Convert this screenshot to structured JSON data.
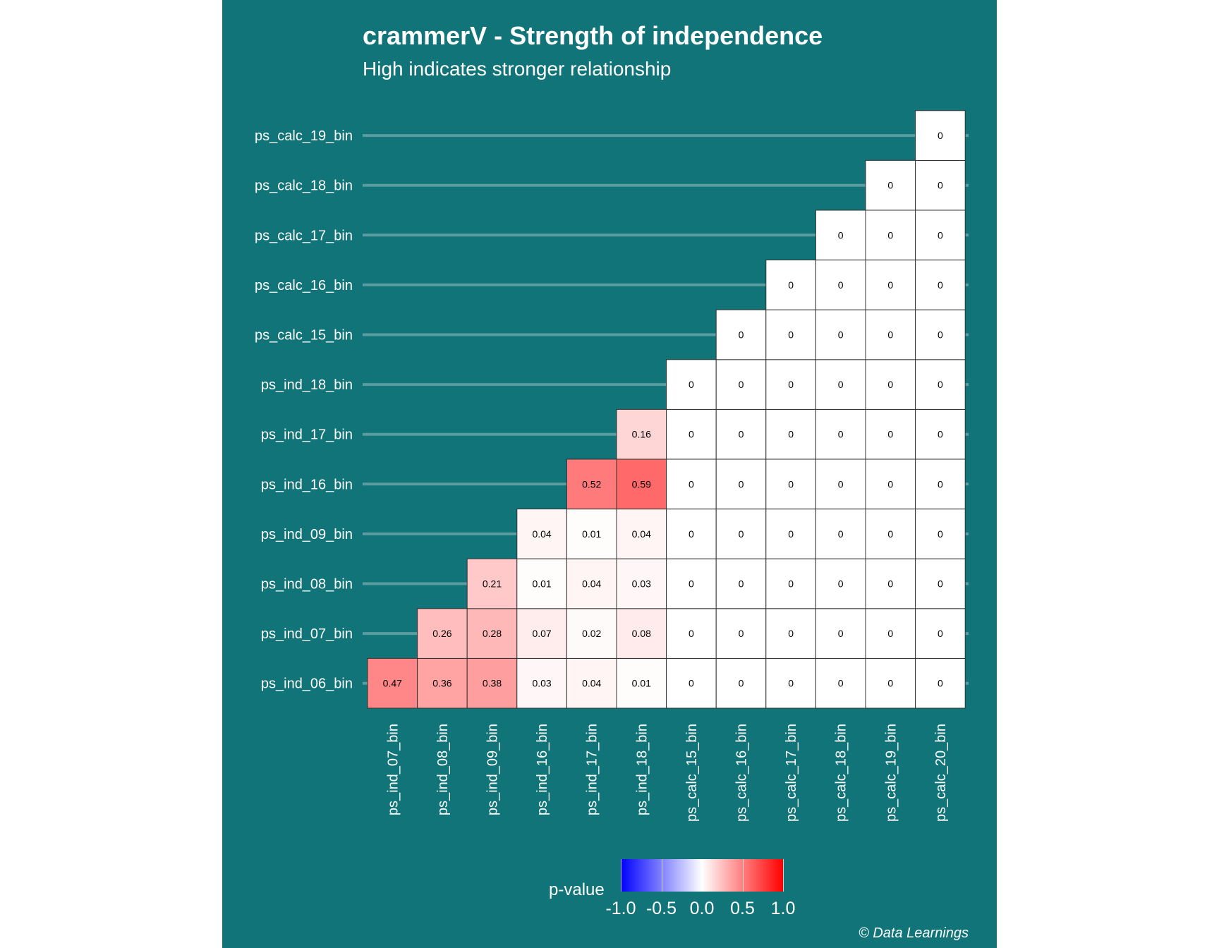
{
  "chart_data": {
    "type": "heatmap",
    "title": "crammerV - Strength of independence",
    "subtitle": "High indicates stronger relationship",
    "caption": "© Data Learnings",
    "x_labels": [
      "ps_ind_07_bin",
      "ps_ind_08_bin",
      "ps_ind_09_bin",
      "ps_ind_16_bin",
      "ps_ind_17_bin",
      "ps_ind_18_bin",
      "ps_calc_15_bin",
      "ps_calc_16_bin",
      "ps_calc_17_bin",
      "ps_calc_18_bin",
      "ps_calc_19_bin",
      "ps_calc_20_bin"
    ],
    "y_labels": [
      "ps_ind_06_bin",
      "ps_ind_07_bin",
      "ps_ind_08_bin",
      "ps_ind_09_bin",
      "ps_ind_16_bin",
      "ps_ind_17_bin",
      "ps_ind_18_bin",
      "ps_calc_15_bin",
      "ps_calc_16_bin",
      "ps_calc_17_bin",
      "ps_calc_18_bin",
      "ps_calc_19_bin"
    ],
    "cells": [
      {
        "x": "ps_ind_07_bin",
        "y": "ps_ind_06_bin",
        "value": 0.47,
        "label": "0.47"
      },
      {
        "x": "ps_ind_08_bin",
        "y": "ps_ind_06_bin",
        "value": 0.36,
        "label": "0.36"
      },
      {
        "x": "ps_ind_09_bin",
        "y": "ps_ind_06_bin",
        "value": 0.38,
        "label": "0.38"
      },
      {
        "x": "ps_ind_16_bin",
        "y": "ps_ind_06_bin",
        "value": 0.03,
        "label": "0.03"
      },
      {
        "x": "ps_ind_17_bin",
        "y": "ps_ind_06_bin",
        "value": 0.04,
        "label": "0.04"
      },
      {
        "x": "ps_ind_18_bin",
        "y": "ps_ind_06_bin",
        "value": 0.01,
        "label": "0.01"
      },
      {
        "x": "ps_calc_15_bin",
        "y": "ps_ind_06_bin",
        "value": 0,
        "label": "0"
      },
      {
        "x": "ps_calc_16_bin",
        "y": "ps_ind_06_bin",
        "value": 0,
        "label": "0"
      },
      {
        "x": "ps_calc_17_bin",
        "y": "ps_ind_06_bin",
        "value": 0,
        "label": "0"
      },
      {
        "x": "ps_calc_18_bin",
        "y": "ps_ind_06_bin",
        "value": 0,
        "label": "0"
      },
      {
        "x": "ps_calc_19_bin",
        "y": "ps_ind_06_bin",
        "value": 0,
        "label": "0"
      },
      {
        "x": "ps_calc_20_bin",
        "y": "ps_ind_06_bin",
        "value": 0,
        "label": "0"
      },
      {
        "x": "ps_ind_08_bin",
        "y": "ps_ind_07_bin",
        "value": 0.26,
        "label": "0.26"
      },
      {
        "x": "ps_ind_09_bin",
        "y": "ps_ind_07_bin",
        "value": 0.28,
        "label": "0.28"
      },
      {
        "x": "ps_ind_16_bin",
        "y": "ps_ind_07_bin",
        "value": 0.07,
        "label": "0.07"
      },
      {
        "x": "ps_ind_17_bin",
        "y": "ps_ind_07_bin",
        "value": 0.02,
        "label": "0.02"
      },
      {
        "x": "ps_ind_18_bin",
        "y": "ps_ind_07_bin",
        "value": 0.08,
        "label": "0.08"
      },
      {
        "x": "ps_calc_15_bin",
        "y": "ps_ind_07_bin",
        "value": 0,
        "label": "0"
      },
      {
        "x": "ps_calc_16_bin",
        "y": "ps_ind_07_bin",
        "value": 0,
        "label": "0"
      },
      {
        "x": "ps_calc_17_bin",
        "y": "ps_ind_07_bin",
        "value": 0,
        "label": "0"
      },
      {
        "x": "ps_calc_18_bin",
        "y": "ps_ind_07_bin",
        "value": 0,
        "label": "0"
      },
      {
        "x": "ps_calc_19_bin",
        "y": "ps_ind_07_bin",
        "value": 0,
        "label": "0"
      },
      {
        "x": "ps_calc_20_bin",
        "y": "ps_ind_07_bin",
        "value": 0,
        "label": "0"
      },
      {
        "x": "ps_ind_09_bin",
        "y": "ps_ind_08_bin",
        "value": 0.21,
        "label": "0.21"
      },
      {
        "x": "ps_ind_16_bin",
        "y": "ps_ind_08_bin",
        "value": 0.01,
        "label": "0.01"
      },
      {
        "x": "ps_ind_17_bin",
        "y": "ps_ind_08_bin",
        "value": 0.04,
        "label": "0.04"
      },
      {
        "x": "ps_ind_18_bin",
        "y": "ps_ind_08_bin",
        "value": 0.03,
        "label": "0.03"
      },
      {
        "x": "ps_calc_15_bin",
        "y": "ps_ind_08_bin",
        "value": 0,
        "label": "0"
      },
      {
        "x": "ps_calc_16_bin",
        "y": "ps_ind_08_bin",
        "value": 0,
        "label": "0"
      },
      {
        "x": "ps_calc_17_bin",
        "y": "ps_ind_08_bin",
        "value": 0,
        "label": "0"
      },
      {
        "x": "ps_calc_18_bin",
        "y": "ps_ind_08_bin",
        "value": 0,
        "label": "0"
      },
      {
        "x": "ps_calc_19_bin",
        "y": "ps_ind_08_bin",
        "value": 0,
        "label": "0"
      },
      {
        "x": "ps_calc_20_bin",
        "y": "ps_ind_08_bin",
        "value": 0,
        "label": "0"
      },
      {
        "x": "ps_ind_16_bin",
        "y": "ps_ind_09_bin",
        "value": 0.04,
        "label": "0.04"
      },
      {
        "x": "ps_ind_17_bin",
        "y": "ps_ind_09_bin",
        "value": 0.01,
        "label": "0.01"
      },
      {
        "x": "ps_ind_18_bin",
        "y": "ps_ind_09_bin",
        "value": 0.04,
        "label": "0.04"
      },
      {
        "x": "ps_calc_15_bin",
        "y": "ps_ind_09_bin",
        "value": 0,
        "label": "0"
      },
      {
        "x": "ps_calc_16_bin",
        "y": "ps_ind_09_bin",
        "value": 0,
        "label": "0"
      },
      {
        "x": "ps_calc_17_bin",
        "y": "ps_ind_09_bin",
        "value": 0,
        "label": "0"
      },
      {
        "x": "ps_calc_18_bin",
        "y": "ps_ind_09_bin",
        "value": 0,
        "label": "0"
      },
      {
        "x": "ps_calc_19_bin",
        "y": "ps_ind_09_bin",
        "value": 0,
        "label": "0"
      },
      {
        "x": "ps_calc_20_bin",
        "y": "ps_ind_09_bin",
        "value": 0,
        "label": "0"
      },
      {
        "x": "ps_ind_17_bin",
        "y": "ps_ind_16_bin",
        "value": 0.52,
        "label": "0.52"
      },
      {
        "x": "ps_ind_18_bin",
        "y": "ps_ind_16_bin",
        "value": 0.59,
        "label": "0.59"
      },
      {
        "x": "ps_calc_15_bin",
        "y": "ps_ind_16_bin",
        "value": 0,
        "label": "0"
      },
      {
        "x": "ps_calc_16_bin",
        "y": "ps_ind_16_bin",
        "value": 0,
        "label": "0"
      },
      {
        "x": "ps_calc_17_bin",
        "y": "ps_ind_16_bin",
        "value": 0,
        "label": "0"
      },
      {
        "x": "ps_calc_18_bin",
        "y": "ps_ind_16_bin",
        "value": 0,
        "label": "0"
      },
      {
        "x": "ps_calc_19_bin",
        "y": "ps_ind_16_bin",
        "value": 0,
        "label": "0"
      },
      {
        "x": "ps_calc_20_bin",
        "y": "ps_ind_16_bin",
        "value": 0,
        "label": "0"
      },
      {
        "x": "ps_ind_18_bin",
        "y": "ps_ind_17_bin",
        "value": 0.16,
        "label": "0.16"
      },
      {
        "x": "ps_calc_15_bin",
        "y": "ps_ind_17_bin",
        "value": 0,
        "label": "0"
      },
      {
        "x": "ps_calc_16_bin",
        "y": "ps_ind_17_bin",
        "value": 0,
        "label": "0"
      },
      {
        "x": "ps_calc_17_bin",
        "y": "ps_ind_17_bin",
        "value": 0,
        "label": "0"
      },
      {
        "x": "ps_calc_18_bin",
        "y": "ps_ind_17_bin",
        "value": 0,
        "label": "0"
      },
      {
        "x": "ps_calc_19_bin",
        "y": "ps_ind_17_bin",
        "value": 0,
        "label": "0"
      },
      {
        "x": "ps_calc_20_bin",
        "y": "ps_ind_17_bin",
        "value": 0,
        "label": "0"
      },
      {
        "x": "ps_calc_15_bin",
        "y": "ps_ind_18_bin",
        "value": 0,
        "label": "0"
      },
      {
        "x": "ps_calc_16_bin",
        "y": "ps_ind_18_bin",
        "value": 0,
        "label": "0"
      },
      {
        "x": "ps_calc_17_bin",
        "y": "ps_ind_18_bin",
        "value": 0,
        "label": "0"
      },
      {
        "x": "ps_calc_18_bin",
        "y": "ps_ind_18_bin",
        "value": 0,
        "label": "0"
      },
      {
        "x": "ps_calc_19_bin",
        "y": "ps_ind_18_bin",
        "value": 0,
        "label": "0"
      },
      {
        "x": "ps_calc_20_bin",
        "y": "ps_ind_18_bin",
        "value": 0,
        "label": "0"
      },
      {
        "x": "ps_calc_16_bin",
        "y": "ps_calc_15_bin",
        "value": 0,
        "label": "0"
      },
      {
        "x": "ps_calc_17_bin",
        "y": "ps_calc_15_bin",
        "value": 0,
        "label": "0"
      },
      {
        "x": "ps_calc_18_bin",
        "y": "ps_calc_15_bin",
        "value": 0,
        "label": "0"
      },
      {
        "x": "ps_calc_19_bin",
        "y": "ps_calc_15_bin",
        "value": 0,
        "label": "0"
      },
      {
        "x": "ps_calc_20_bin",
        "y": "ps_calc_15_bin",
        "value": 0,
        "label": "0"
      },
      {
        "x": "ps_calc_17_bin",
        "y": "ps_calc_16_bin",
        "value": 0,
        "label": "0"
      },
      {
        "x": "ps_calc_18_bin",
        "y": "ps_calc_16_bin",
        "value": 0,
        "label": "0"
      },
      {
        "x": "ps_calc_19_bin",
        "y": "ps_calc_16_bin",
        "value": 0,
        "label": "0"
      },
      {
        "x": "ps_calc_20_bin",
        "y": "ps_calc_16_bin",
        "value": 0,
        "label": "0"
      },
      {
        "x": "ps_calc_18_bin",
        "y": "ps_calc_17_bin",
        "value": 0,
        "label": "0"
      },
      {
        "x": "ps_calc_19_bin",
        "y": "ps_calc_17_bin",
        "value": 0,
        "label": "0"
      },
      {
        "x": "ps_calc_20_bin",
        "y": "ps_calc_17_bin",
        "value": 0,
        "label": "0"
      },
      {
        "x": "ps_calc_19_bin",
        "y": "ps_calc_18_bin",
        "value": 0,
        "label": "0"
      },
      {
        "x": "ps_calc_20_bin",
        "y": "ps_calc_18_bin",
        "value": 0,
        "label": "0"
      },
      {
        "x": "ps_calc_20_bin",
        "y": "ps_calc_19_bin",
        "value": 0,
        "label": "0"
      }
    ],
    "legend": {
      "title": "p-value",
      "range": [
        -1.0,
        1.0
      ],
      "ticks": [
        "-1.0",
        "-0.5",
        "0.0",
        "0.5",
        "1.0"
      ],
      "tick_values": [
        -1.0,
        -0.5,
        0.0,
        0.5,
        1.0
      ],
      "colors": {
        "low": "#0000ff",
        "mid": "#ffffff",
        "high": "#ff0000"
      },
      "position": "bottom"
    },
    "grid": false
  },
  "colors": {
    "panel_background": "#107478",
    "text": "#ffffff",
    "row_guide": "#5a9ca0",
    "tile_border": "#333333"
  }
}
